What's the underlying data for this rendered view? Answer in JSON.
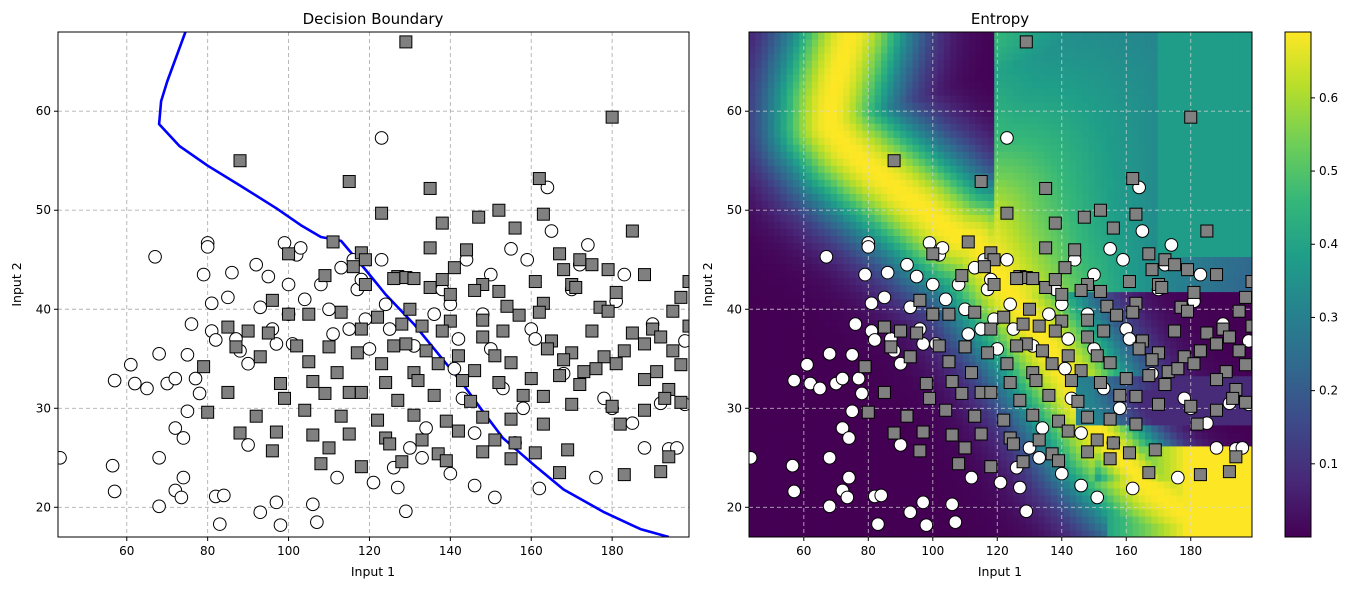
{
  "chart_data": [
    {
      "type": "scatter",
      "title": "Decision Boundary",
      "xlabel": "Input 1",
      "ylabel": "Input 2",
      "xlim": [
        43,
        199
      ],
      "ylim": [
        17,
        68
      ],
      "xticks": [
        "60",
        "80",
        "100",
        "120",
        "140",
        "160",
        "180"
      ],
      "yticks": [
        "20",
        "30",
        "40",
        "50",
        "60"
      ],
      "grid": true,
      "boundary_color": "#0000ff",
      "boundary": [
        [
          74.5,
          68
        ],
        [
          70,
          63
        ],
        [
          68.5,
          61
        ],
        [
          68,
          58.7
        ],
        [
          73,
          56.5
        ],
        [
          80,
          54.5
        ],
        [
          88,
          52.5
        ],
        [
          97,
          50.2
        ],
        [
          103,
          48.5
        ],
        [
          108,
          47.3
        ],
        [
          113,
          46.9
        ],
        [
          119,
          44
        ],
        [
          124,
          41.5
        ],
        [
          131,
          38.5
        ],
        [
          137,
          35.5
        ],
        [
          143,
          32.5
        ],
        [
          148,
          29.7
        ],
        [
          153,
          27
        ],
        [
          160,
          24.5
        ],
        [
          168,
          21.8
        ],
        [
          178,
          19.5
        ],
        [
          187,
          17.8
        ],
        [
          194,
          17
        ]
      ],
      "class_0_marker": "circle",
      "class_0_color": "#ffffff",
      "class_1_marker": "square",
      "class_1_color": "#808080",
      "class_0_points": [
        [
          43.5,
          25
        ],
        [
          56.5,
          24.2
        ],
        [
          57,
          21.6
        ],
        [
          57,
          32.8
        ],
        [
          61,
          34.4
        ],
        [
          62,
          32.5
        ],
        [
          65,
          32
        ],
        [
          67,
          45.3
        ],
        [
          68,
          35.5
        ],
        [
          68,
          25
        ],
        [
          68,
          20.1
        ],
        [
          70,
          32.5
        ],
        [
          72,
          33
        ],
        [
          72,
          28
        ],
        [
          72,
          21.7
        ],
        [
          73.5,
          21
        ],
        [
          74,
          23
        ],
        [
          74,
          27
        ],
        [
          75,
          29.7
        ],
        [
          75,
          35.4
        ],
        [
          76,
          38.5
        ],
        [
          77,
          33
        ],
        [
          78,
          31.5
        ],
        [
          79,
          43.5
        ],
        [
          80,
          46.7
        ],
        [
          80,
          46.3
        ],
        [
          81,
          40.6
        ],
        [
          81,
          37.8
        ],
        [
          82,
          36.9
        ],
        [
          82,
          21.1
        ],
        [
          83,
          18.3
        ],
        [
          84,
          21.2
        ],
        [
          85,
          41.2
        ],
        [
          86,
          43.7
        ],
        [
          87,
          37
        ],
        [
          88,
          35.8
        ],
        [
          90,
          34.5
        ],
        [
          90,
          26.3
        ],
        [
          92,
          44.5
        ],
        [
          93,
          40.2
        ],
        [
          93,
          19.5
        ],
        [
          95,
          43.3
        ],
        [
          96,
          38
        ],
        [
          97,
          36.5
        ],
        [
          97,
          20.5
        ],
        [
          98,
          18.2
        ],
        [
          99,
          46.7
        ],
        [
          100,
          42.5
        ],
        [
          100,
          39.5
        ],
        [
          101,
          36.5
        ],
        [
          102,
          45.5
        ],
        [
          103,
          46.2
        ],
        [
          104,
          41
        ],
        [
          106,
          20.3
        ],
        [
          107,
          18.5
        ],
        [
          108,
          42.5
        ],
        [
          110,
          40
        ],
        [
          111,
          37.5
        ],
        [
          112,
          23
        ],
        [
          113,
          44.2
        ],
        [
          115,
          38
        ],
        [
          116,
          45
        ],
        [
          117,
          42
        ],
        [
          118,
          43
        ],
        [
          119,
          39
        ],
        [
          120,
          36
        ],
        [
          121,
          22.5
        ],
        [
          123,
          57.3
        ],
        [
          123,
          45
        ],
        [
          124,
          40.5
        ],
        [
          125,
          38
        ],
        [
          126,
          24
        ],
        [
          127,
          22
        ],
        [
          129,
          19.6
        ],
        [
          130,
          26
        ],
        [
          131,
          36.3
        ],
        [
          133,
          25
        ],
        [
          134,
          28
        ],
        [
          136,
          39.5
        ],
        [
          138,
          42
        ],
        [
          140,
          40.5
        ],
        [
          140,
          23.4
        ],
        [
          141,
          34
        ],
        [
          142,
          37
        ],
        [
          143,
          31
        ],
        [
          144,
          45
        ],
        [
          146,
          22.2
        ],
        [
          146,
          27.5
        ],
        [
          148,
          39.5
        ],
        [
          150,
          43.5
        ],
        [
          150,
          36
        ],
        [
          151,
          21
        ],
        [
          153,
          32
        ],
        [
          155,
          46.1
        ],
        [
          156,
          26.5
        ],
        [
          158,
          30
        ],
        [
          159,
          45
        ],
        [
          160,
          38
        ],
        [
          161,
          37
        ],
        [
          162,
          21.9
        ],
        [
          164,
          52.3
        ],
        [
          165,
          47.9
        ],
        [
          168,
          33.5
        ],
        [
          170,
          42
        ],
        [
          172,
          44.5
        ],
        [
          174,
          46.5
        ],
        [
          176,
          23
        ],
        [
          178,
          31
        ],
        [
          180,
          30
        ],
        [
          181,
          40.8
        ],
        [
          183,
          43.5
        ],
        [
          185,
          28.5
        ],
        [
          188,
          26
        ],
        [
          190,
          38.5
        ],
        [
          192,
          30.5
        ],
        [
          194,
          25.9
        ],
        [
          196,
          26
        ],
        [
          198,
          36.8
        ],
        [
          198,
          30.4
        ]
      ],
      "class_1_points": [
        [
          129,
          67
        ],
        [
          180,
          59.4
        ],
        [
          88,
          55
        ],
        [
          115,
          52.9
        ],
        [
          135,
          52.2
        ],
        [
          162,
          53.2
        ],
        [
          123,
          49.7
        ],
        [
          138,
          48.7
        ],
        [
          147,
          49.3
        ],
        [
          152,
          50
        ],
        [
          156,
          48.2
        ],
        [
          163,
          49.6
        ],
        [
          185,
          47.9
        ],
        [
          111,
          46.8
        ],
        [
          118,
          45.7
        ],
        [
          119,
          45
        ],
        [
          144,
          46
        ],
        [
          135,
          46.2
        ],
        [
          167,
          45.6
        ],
        [
          172,
          45
        ],
        [
          100,
          45.6
        ],
        [
          116,
          44.3
        ],
        [
          127,
          43.3
        ],
        [
          129,
          43.2
        ],
        [
          131,
          43.1
        ],
        [
          141,
          44.2
        ],
        [
          161,
          42.8
        ],
        [
          168,
          44
        ],
        [
          170,
          42.5
        ],
        [
          175,
          44.5
        ],
        [
          179,
          44
        ],
        [
          188,
          43.5
        ],
        [
          199,
          42.8
        ],
        [
          109,
          43.4
        ],
        [
          126,
          43.1
        ],
        [
          135,
          42.2
        ],
        [
          138,
          43
        ],
        [
          148,
          42.5
        ],
        [
          152,
          41.8
        ],
        [
          171,
          42.2
        ],
        [
          181,
          41.7
        ],
        [
          197,
          41.2
        ],
        [
          96,
          40.9
        ],
        [
          119,
          42.5
        ],
        [
          140,
          41.5
        ],
        [
          146,
          41.9
        ],
        [
          163,
          40.6
        ],
        [
          177,
          40.2
        ],
        [
          130,
          40
        ],
        [
          154,
          40.3
        ],
        [
          162,
          39.7
        ],
        [
          100,
          39.5
        ],
        [
          105,
          39.5
        ],
        [
          113,
          39.7
        ],
        [
          122,
          39.2
        ],
        [
          128,
          38.5
        ],
        [
          133,
          38.3
        ],
        [
          140,
          38.8
        ],
        [
          148,
          38.9
        ],
        [
          157,
          39.4
        ],
        [
          179,
          39.8
        ],
        [
          190,
          38
        ],
        [
          195,
          39.8
        ],
        [
          85,
          38.2
        ],
        [
          90,
          37.8
        ],
        [
          95,
          37.6
        ],
        [
          118,
          38
        ],
        [
          129,
          36.5
        ],
        [
          138,
          37.8
        ],
        [
          148,
          37.2
        ],
        [
          153,
          37.8
        ],
        [
          165,
          36.8
        ],
        [
          175,
          37.8
        ],
        [
          185,
          37.6
        ],
        [
          192,
          37.2
        ],
        [
          199,
          38.3
        ],
        [
          87,
          36.2
        ],
        [
          102,
          36.3
        ],
        [
          110,
          36.2
        ],
        [
          117,
          35.6
        ],
        [
          126,
          36.3
        ],
        [
          134,
          35.8
        ],
        [
          142,
          35.3
        ],
        [
          151,
          35.3
        ],
        [
          164,
          36
        ],
        [
          170,
          35.6
        ],
        [
          178,
          35.2
        ],
        [
          183,
          35.8
        ],
        [
          188,
          36.5
        ],
        [
          195,
          35.8
        ],
        [
          79,
          34.2
        ],
        [
          93,
          35.2
        ],
        [
          105,
          34.7
        ],
        [
          112,
          33.6
        ],
        [
          123,
          34.5
        ],
        [
          131,
          33.6
        ],
        [
          137,
          34.5
        ],
        [
          146,
          33.8
        ],
        [
          155,
          34.6
        ],
        [
          168,
          34.9
        ],
        [
          173,
          33.7
        ],
        [
          176,
          34
        ],
        [
          181,
          34.5
        ],
        [
          191,
          33.7
        ],
        [
          197,
          34.4
        ],
        [
          98,
          32.5
        ],
        [
          106,
          32.7
        ],
        [
          115,
          31.6
        ],
        [
          124,
          32.6
        ],
        [
          132,
          32.8
        ],
        [
          143,
          32.8
        ],
        [
          152,
          32.6
        ],
        [
          160,
          33
        ],
        [
          167,
          33.3
        ],
        [
          172,
          32.4
        ],
        [
          188,
          32.9
        ],
        [
          194,
          31.9
        ],
        [
          85,
          31.6
        ],
        [
          99,
          31
        ],
        [
          109,
          31.5
        ],
        [
          118,
          31.6
        ],
        [
          127,
          30.8
        ],
        [
          136,
          31.3
        ],
        [
          145,
          30.7
        ],
        [
          158,
          31.3
        ],
        [
          163,
          31.2
        ],
        [
          170,
          30.4
        ],
        [
          180,
          30.2
        ],
        [
          188,
          29.8
        ],
        [
          193,
          31
        ],
        [
          197,
          30.6
        ],
        [
          80,
          29.6
        ],
        [
          92,
          29.2
        ],
        [
          104,
          29.8
        ],
        [
          113,
          29.2
        ],
        [
          122,
          28.8
        ],
        [
          131,
          29.3
        ],
        [
          139,
          28.7
        ],
        [
          148,
          29.1
        ],
        [
          155,
          28.9
        ],
        [
          163,
          28.4
        ],
        [
          182,
          28.4
        ],
        [
          88,
          27.5
        ],
        [
          97,
          27.6
        ],
        [
          106,
          27.3
        ],
        [
          115,
          27.4
        ],
        [
          124,
          27
        ],
        [
          133,
          26.8
        ],
        [
          142,
          27.7
        ],
        [
          151,
          26.8
        ],
        [
          156,
          26.5
        ],
        [
          96,
          25.7
        ],
        [
          110,
          26
        ],
        [
          125,
          26.4
        ],
        [
          137,
          25.4
        ],
        [
          148,
          25.6
        ],
        [
          161,
          25.5
        ],
        [
          169,
          25.8
        ],
        [
          108,
          24.4
        ],
        [
          118,
          24.1
        ],
        [
          128,
          24.6
        ],
        [
          139,
          24.7
        ],
        [
          155,
          24.9
        ],
        [
          167,
          23.5
        ],
        [
          183,
          23.3
        ],
        [
          192,
          23.6
        ],
        [
          194,
          25.1
        ]
      ]
    },
    {
      "type": "heatmap",
      "title": "Entropy",
      "xlabel": "Input 1",
      "ylabel": "Input 2",
      "xlim": [
        43,
        199
      ],
      "ylim": [
        17,
        68
      ],
      "xticks": [
        "60",
        "80",
        "100",
        "120",
        "140",
        "160",
        "180"
      ],
      "yticks": [
        "20",
        "30",
        "40",
        "50",
        "60"
      ],
      "grid": true,
      "colormap": "viridis",
      "colorbar_range": [
        0.0,
        0.69
      ],
      "colorbar_ticks": [
        "0.1",
        "0.2",
        "0.3",
        "0.4",
        "0.5",
        "0.6"
      ],
      "colormap_stops": [
        "#440154",
        "#482878",
        "#3e4989",
        "#31688e",
        "#26828e",
        "#1f9e89",
        "#35b779",
        "#6ece58",
        "#b5de2b",
        "#fde725"
      ],
      "overlay": "same points as Decision Boundary"
    }
  ]
}
